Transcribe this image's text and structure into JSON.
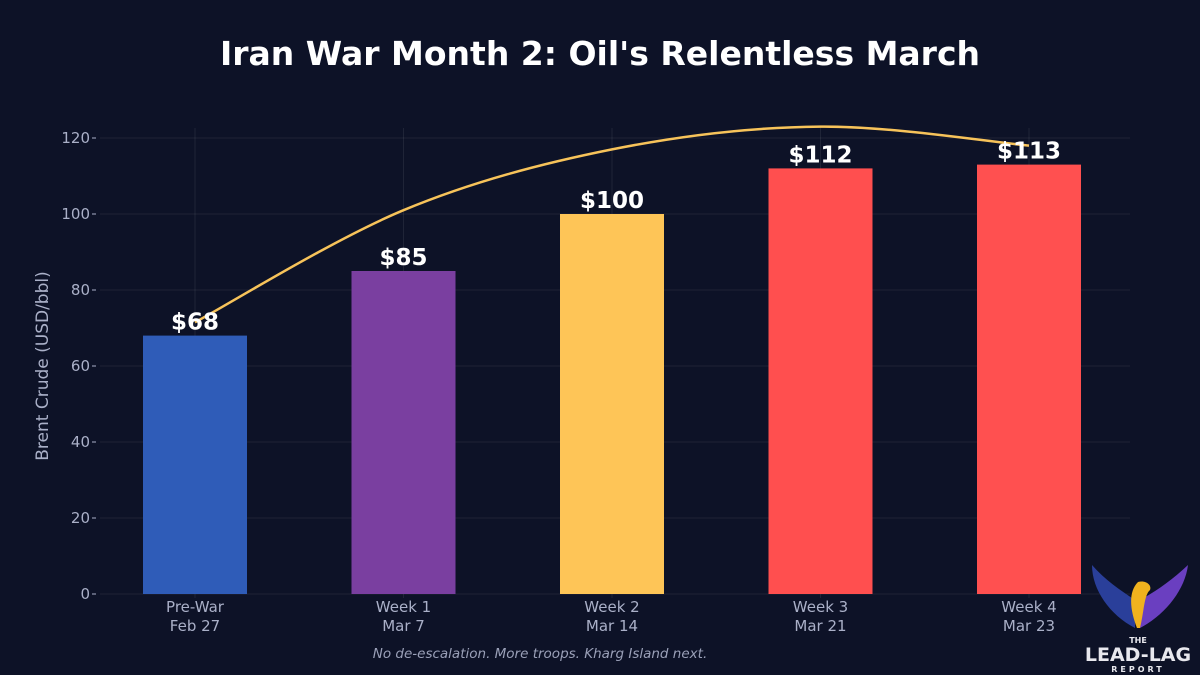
{
  "chart_data": {
    "type": "bar",
    "title": "Iran War Month 2: Oil's Relentless March",
    "ylabel": "Brent Crude (USD/bbl)",
    "xlabel": "",
    "categories": [
      [
        "Pre-War",
        "Feb 27"
      ],
      [
        "Week 1",
        "Mar 7"
      ],
      [
        "Week 2",
        "Mar 14"
      ],
      [
        "Week 3",
        "Mar 21"
      ],
      [
        "Week 4",
        "Mar 23"
      ]
    ],
    "values": [
      68,
      85,
      100,
      112,
      113
    ],
    "data_labels": [
      "$68",
      "$85",
      "$100",
      "$112",
      "$113"
    ],
    "colors": [
      "#2f5cb8",
      "#7a3fa0",
      "#fec557",
      "#ff4f4f",
      "#ff5050"
    ],
    "trend_curve": {
      "color": "#f7c35a",
      "values": [
        71.5,
        101,
        117,
        123,
        118
      ]
    },
    "ylim": [
      0,
      120
    ],
    "yticks": [
      0,
      20,
      40,
      60,
      80,
      100,
      120
    ],
    "grid": true,
    "annotation": "No de-escalation. More troops. Kharg Island next."
  },
  "logo": {
    "line1": "THE",
    "line2": "LEAD-LAG",
    "line3": "REPORT"
  }
}
